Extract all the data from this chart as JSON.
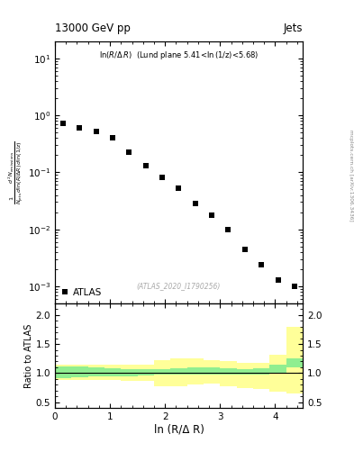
{
  "title_top": "13000 GeV pp",
  "title_right": "Jets",
  "inner_title": "ln(R/Δ R)  (Lund plane 5.41<ln(1/z)<5.68)",
  "watermark": "(ATLAS_2020_I1790256)",
  "right_label": "mcplots.cern.ch [arXiv:1306.3436]",
  "xlabel": "ln (R/Δ R)",
  "ylabel_ratio": "Ratio to ATLAS",
  "data_x": [
    0.15,
    0.45,
    0.75,
    1.05,
    1.35,
    1.65,
    1.95,
    2.25,
    2.55,
    2.85,
    3.15,
    3.45,
    3.75,
    4.05,
    4.35
  ],
  "data_y": [
    0.72,
    0.6,
    0.52,
    0.4,
    0.23,
    0.13,
    0.082,
    0.052,
    0.028,
    0.018,
    0.01,
    0.0045,
    0.0024,
    0.0013,
    0.001
  ],
  "legend_label": "ATLAS",
  "xlim": [
    0,
    4.5
  ],
  "ylim_main": [
    0.0005,
    20
  ],
  "ylim_ratio": [
    0.4,
    2.2
  ],
  "ratio_yticks": [
    0.5,
    1.0,
    1.5,
    2.0
  ],
  "green_band_x": [
    0.0,
    0.3,
    0.6,
    0.9,
    1.2,
    1.5,
    1.8,
    2.1,
    2.4,
    2.7,
    3.0,
    3.3,
    3.6,
    3.9,
    4.2,
    4.5
  ],
  "green_band_lo": [
    0.92,
    0.93,
    0.94,
    0.95,
    0.95,
    0.96,
    0.97,
    0.97,
    0.97,
    0.97,
    0.97,
    0.97,
    0.97,
    1.0,
    1.1,
    0.65
  ],
  "green_band_hi": [
    1.12,
    1.12,
    1.1,
    1.08,
    1.07,
    1.07,
    1.07,
    1.08,
    1.1,
    1.1,
    1.08,
    1.07,
    1.08,
    1.15,
    1.25,
    1.2
  ],
  "yellow_band_x": [
    0.0,
    0.3,
    0.6,
    0.9,
    1.2,
    1.5,
    1.8,
    2.1,
    2.4,
    2.7,
    3.0,
    3.3,
    3.6,
    3.9,
    4.2,
    4.5
  ],
  "yellow_band_lo": [
    0.88,
    0.88,
    0.88,
    0.88,
    0.87,
    0.87,
    0.78,
    0.78,
    0.8,
    0.82,
    0.78,
    0.75,
    0.72,
    0.68,
    0.65,
    0.42
  ],
  "yellow_band_hi": [
    1.15,
    1.15,
    1.15,
    1.15,
    1.15,
    1.15,
    1.22,
    1.25,
    1.25,
    1.22,
    1.2,
    1.18,
    1.18,
    1.32,
    1.8,
    1.85
  ],
  "marker_color": "black",
  "marker_size": 4,
  "green_color": "#90ee90",
  "yellow_color": "#ffff99",
  "background_color": "white"
}
